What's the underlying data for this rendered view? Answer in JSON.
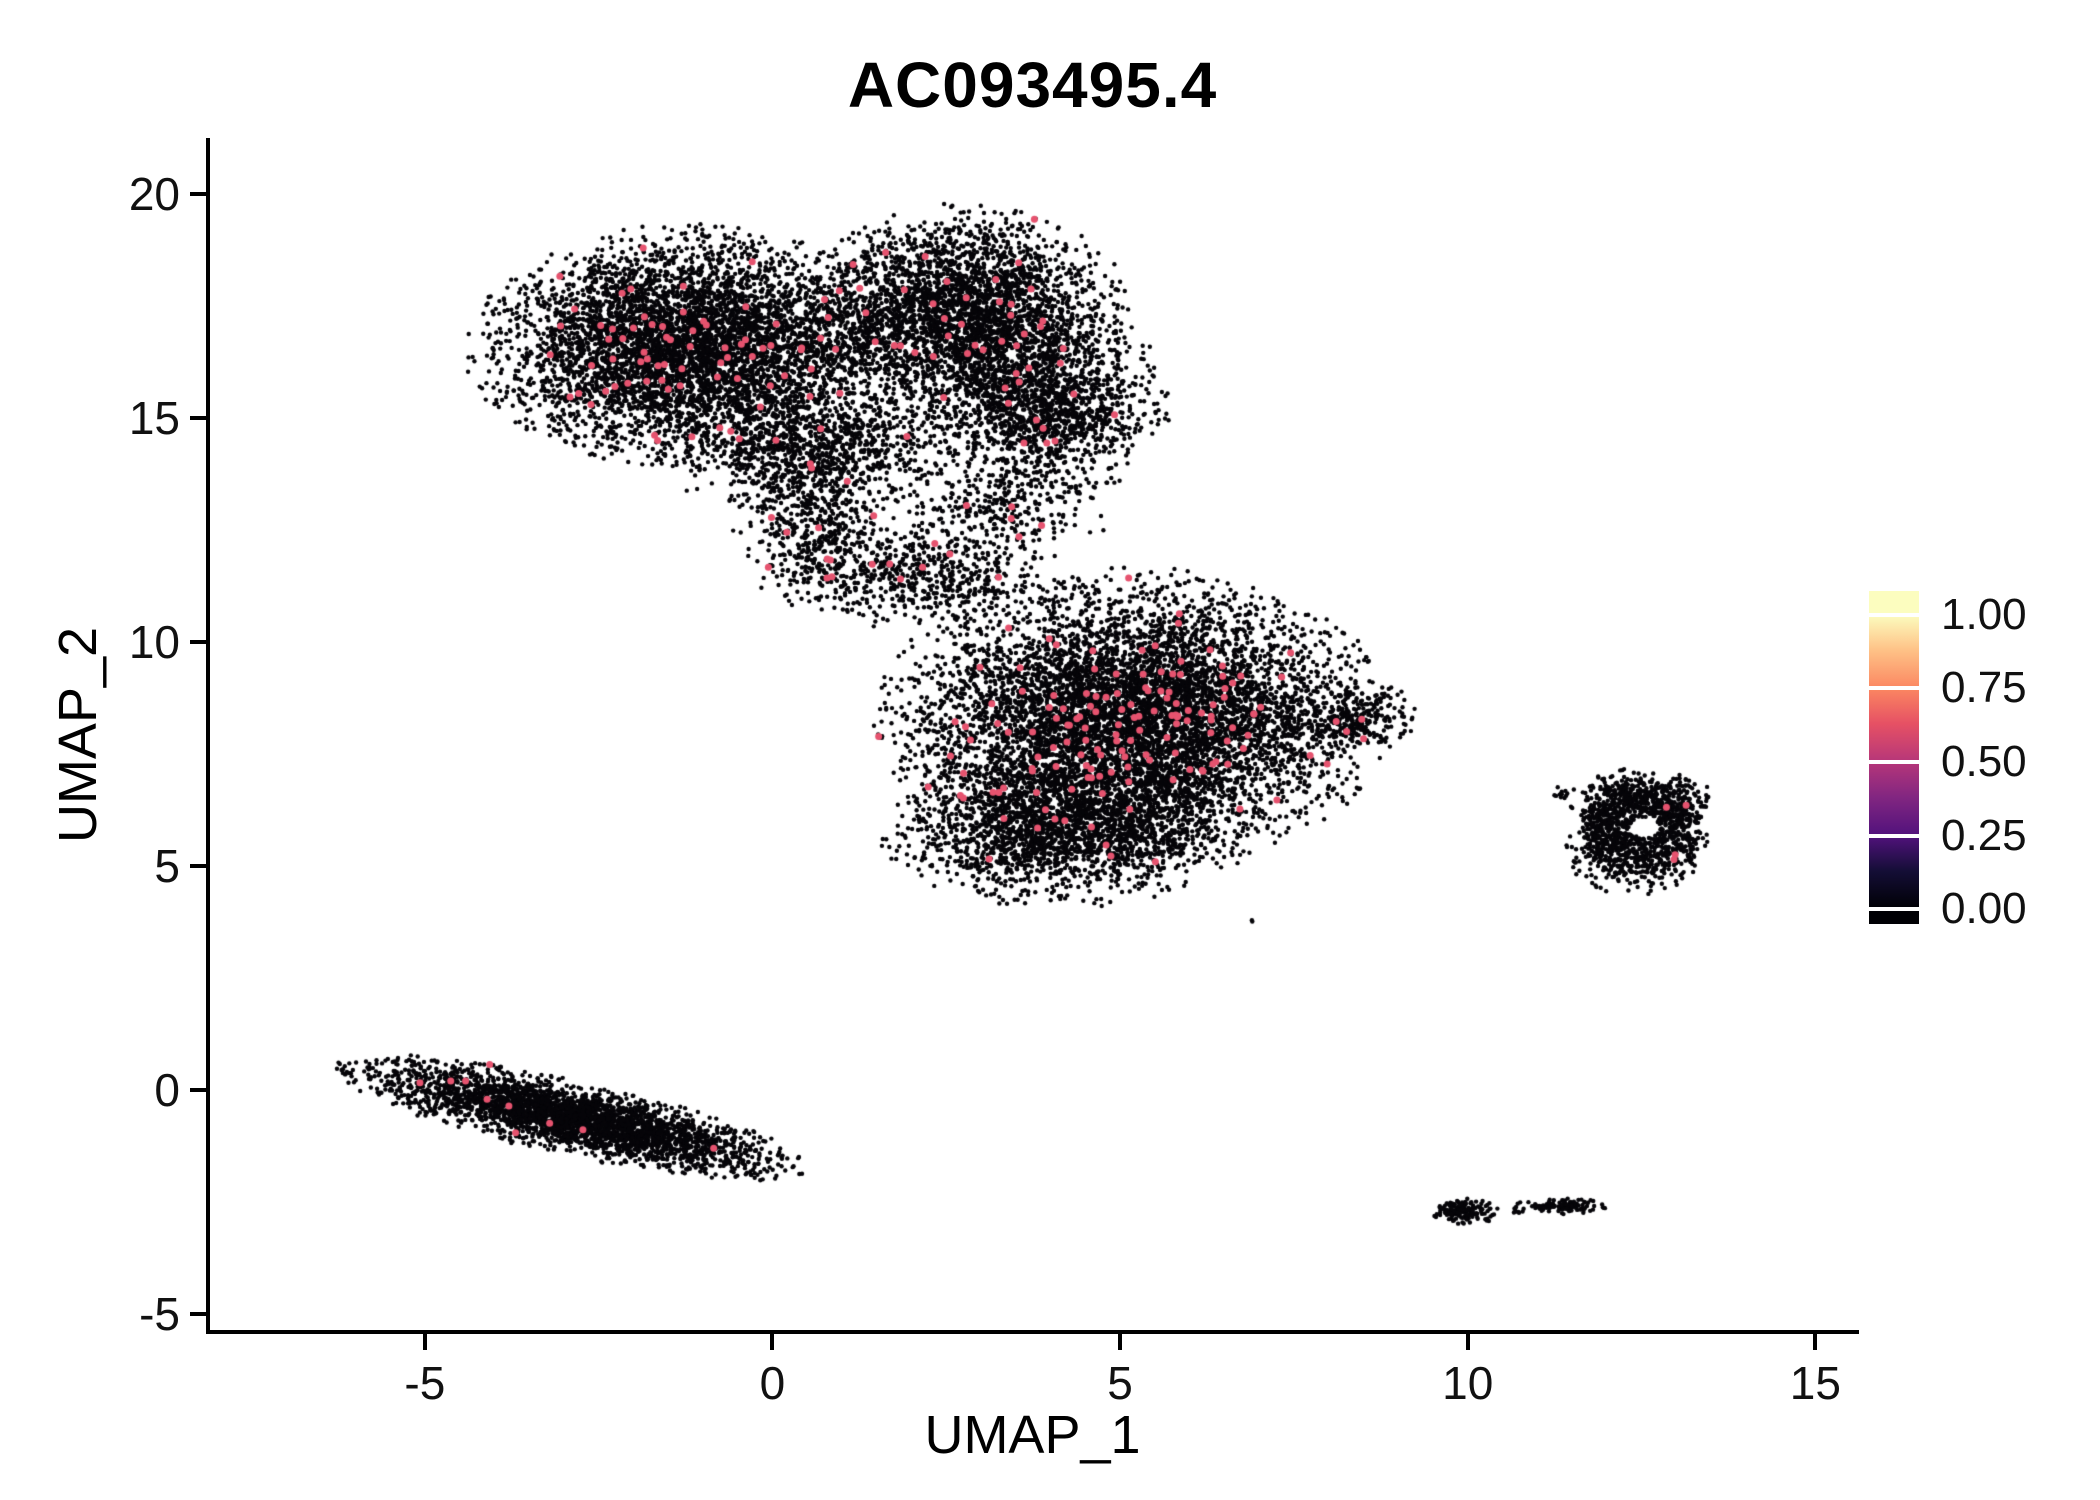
{
  "chart_data": {
    "type": "scatter",
    "title": "AC093495.4",
    "xlabel": "UMAP_1",
    "ylabel": "UMAP_2",
    "grid": false,
    "legend_position": "right",
    "x_ticks": [
      -5,
      0,
      5,
      10,
      15
    ],
    "x_tick_labels": [
      "-5",
      "0",
      "5",
      "10",
      "15"
    ],
    "y_ticks": [
      20,
      15,
      10,
      5,
      0,
      -5
    ],
    "y_tick_labels": [
      "20",
      "15",
      "10",
      "5",
      "0",
      "-5"
    ],
    "x_range": [
      -8.09,
      15.57
    ],
    "y_range": [
      -5.36,
      21.21
    ],
    "point_color_low": "#060509",
    "point_color_high": "#E6536F",
    "point_radius_low": 2.2,
    "point_radius_high": 3.5,
    "seed": 42,
    "clusters": [
      {
        "name": "top-main",
        "cx": -1.2,
        "cy": 16.6,
        "sx": 1.3,
        "sy": 1.1,
        "rot": 0,
        "count": 5200,
        "high_count": 70
      },
      {
        "name": "top-right",
        "cx": 2.7,
        "cy": 17.3,
        "sx": 1.0,
        "sy": 1.0,
        "rot": 0,
        "count": 3200,
        "high_count": 34
      },
      {
        "name": "top-right-lower",
        "cx": 3.9,
        "cy": 15.3,
        "sx": 0.75,
        "sy": 0.9,
        "rot": 0,
        "count": 1500,
        "high_count": 12
      },
      {
        "name": "top-bottom-fill",
        "cx": 0.6,
        "cy": 14.3,
        "sx": 0.95,
        "sy": 0.6,
        "rot": 0,
        "count": 1000,
        "high_count": 10
      },
      {
        "name": "bridge-a",
        "cx": 0.6,
        "cy": 12.5,
        "sx": 0.5,
        "sy": 0.75,
        "rot": 0,
        "count": 450,
        "high_count": 8
      },
      {
        "name": "bridge-b",
        "cx": 2.2,
        "cy": 11.5,
        "sx": 0.9,
        "sy": 0.5,
        "rot": 0,
        "count": 550,
        "high_count": 8
      },
      {
        "name": "bridge-arm",
        "cx": 3.2,
        "cy": 12.9,
        "sx": 0.7,
        "sy": 0.45,
        "rot": 0,
        "count": 260,
        "high_count": 5
      },
      {
        "name": "mid-main",
        "cx": 5.2,
        "cy": 8.3,
        "sx": 1.5,
        "sy": 1.35,
        "rot": 0,
        "count": 6800,
        "high_count": 130
      },
      {
        "name": "mid-lower",
        "cx": 4.2,
        "cy": 5.8,
        "sx": 1.1,
        "sy": 0.7,
        "rot": 0,
        "count": 1900,
        "high_count": 14
      },
      {
        "name": "mid-tip",
        "cx": 8.3,
        "cy": 8.3,
        "sx": 0.45,
        "sy": 0.35,
        "rot": 0,
        "count": 260,
        "high_count": 3
      },
      {
        "name": "stray-point",
        "cx": 6.9,
        "cy": 3.85,
        "sx": 0.05,
        "sy": 0.05,
        "rot": 0,
        "count": 2,
        "high_count": 0
      },
      {
        "name": "ring-top",
        "cx": 12.5,
        "cy": 6.45,
        "sx": 0.42,
        "sy": 0.3,
        "rot": 0,
        "count": 520,
        "high_count": 2
      },
      {
        "name": "ring-bottom",
        "cx": 12.35,
        "cy": 5.3,
        "sx": 0.38,
        "sy": 0.4,
        "rot": 0,
        "count": 480,
        "high_count": 0
      },
      {
        "name": "ring-right",
        "cx": 13.0,
        "cy": 5.8,
        "sx": 0.2,
        "sy": 0.45,
        "rot": 0,
        "count": 260,
        "high_count": 2
      },
      {
        "name": "ring-left",
        "cx": 11.95,
        "cy": 5.85,
        "sx": 0.17,
        "sy": 0.32,
        "rot": 0,
        "count": 180,
        "high_count": 0
      },
      {
        "name": "ring-outlier",
        "cx": 11.35,
        "cy": 6.62,
        "sx": 0.1,
        "sy": 0.07,
        "rot": 0,
        "count": 12,
        "high_count": 0
      },
      {
        "name": "strip",
        "cx": -2.9,
        "cy": -0.62,
        "sx": 1.45,
        "sy": 0.33,
        "rot": -19,
        "count": 3200,
        "high_count": 10
      },
      {
        "name": "tiny-a",
        "cx": 9.95,
        "cy": -2.72,
        "sx": 0.2,
        "sy": 0.12,
        "rot": 0,
        "count": 160,
        "high_count": 0
      },
      {
        "name": "tiny-b",
        "cx": 11.35,
        "cy": -2.6,
        "sx": 0.28,
        "sy": 0.07,
        "rot": 0,
        "count": 110,
        "high_count": 0
      },
      {
        "name": "tiny-c",
        "cx": 10.75,
        "cy": -2.68,
        "sx": 0.06,
        "sy": 0.04,
        "rot": 0,
        "count": 8,
        "high_count": 0
      }
    ],
    "holes": [
      {
        "x": 12.55,
        "y": 5.85,
        "r": 0.22
      }
    ],
    "colorbar": {
      "tick_labels": [
        "1.00",
        "0.75",
        "0.50",
        "0.25",
        "0.00"
      ],
      "tick_values": [
        1.0,
        0.75,
        0.5,
        0.25,
        0.0
      ],
      "range": [
        -0.05,
        1.08
      ],
      "stops": [
        {
          "v": 0.0,
          "c": "#000004"
        },
        {
          "v": 0.13,
          "c": "#140E36"
        },
        {
          "v": 0.25,
          "c": "#51127C"
        },
        {
          "v": 0.38,
          "c": "#822681"
        },
        {
          "v": 0.5,
          "c": "#B63679"
        },
        {
          "v": 0.63,
          "c": "#E65164"
        },
        {
          "v": 0.75,
          "c": "#FB8761"
        },
        {
          "v": 0.88,
          "c": "#FEC287"
        },
        {
          "v": 1.0,
          "c": "#FCFDBF"
        }
      ]
    }
  }
}
